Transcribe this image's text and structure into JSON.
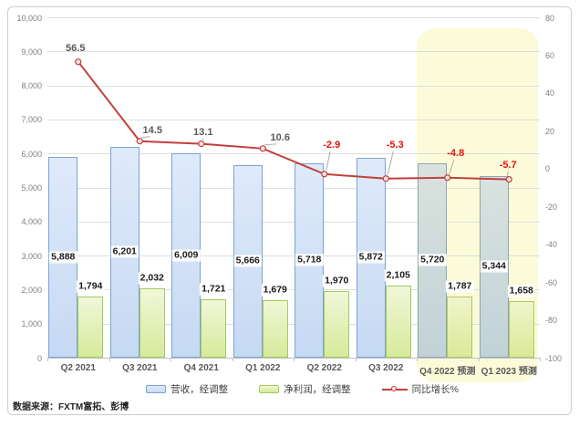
{
  "source_note": "数据来源：FXTM富拓、彭博",
  "legend": {
    "items": [
      {
        "id": "revenue",
        "label": "营收，经调整"
      },
      {
        "id": "profit",
        "label": "净利润，经调整"
      },
      {
        "id": "growth",
        "label": "同比增长%"
      }
    ]
  },
  "chart_data": {
    "type": "bar",
    "subtype": "combo bar + line, dual axis",
    "categories": [
      "Q2 2021",
      "Q3 2021",
      "Q4 2021",
      "Q1 2022",
      "Q2 2022",
      "Q3 2022",
      "Q4 2022 预测",
      "Q1 2023 预测"
    ],
    "forecast_from_index": 6,
    "series": [
      {
        "name": "营收，经调整",
        "type": "bar",
        "axis": "left",
        "values": [
          5888,
          6201,
          6009,
          5666,
          5718,
          5872,
          5720,
          5344
        ],
        "labels": [
          "5,888",
          "6,201",
          "6,009",
          "5,666",
          "5,718",
          "5,872",
          "5,720",
          "5,344"
        ]
      },
      {
        "name": "净利润，经调整",
        "type": "bar",
        "axis": "left",
        "values": [
          1794,
          2032,
          1721,
          1679,
          1970,
          2105,
          1787,
          1658
        ],
        "labels": [
          "1,794",
          "2,032",
          "1,721",
          "1,679",
          "1,970",
          "2,105",
          "1,787",
          "1,658"
        ]
      },
      {
        "name": "同比增长%",
        "type": "line",
        "axis": "right",
        "values": [
          56.5,
          14.5,
          13.1,
          10.6,
          -2.9,
          -5.3,
          -4.8,
          -5.7
        ],
        "labels": [
          "56.5",
          "14.5",
          "13.1",
          "10.6",
          "-2.9",
          "-5.3",
          "-4.8",
          "-5.7"
        ]
      }
    ],
    "left_axis": {
      "min": 0,
      "max": 10000,
      "step": 1000,
      "tick_labels": [
        "0",
        "1,000",
        "2,000",
        "3,000",
        "4,000",
        "5,000",
        "6,000",
        "7,000",
        "8,000",
        "9,000",
        "10,000"
      ]
    },
    "right_axis": {
      "min": -100,
      "max": 80,
      "step": 20,
      "tick_labels": [
        "-100",
        "-80",
        "-60",
        "-40",
        "-20",
        "0",
        "20",
        "40",
        "60",
        "80"
      ]
    },
    "gridlines": true,
    "legend_position": "bottom",
    "colors": {
      "revenue_fill_top": "#dfeafa",
      "revenue_fill": "#c6d9f3",
      "revenue_border": "#7ca2d4",
      "profit_fill_top": "#f0f7d8",
      "profit_fill": "#d6ea9b",
      "profit_border": "#a5c860",
      "forecast_revenue_fill_top": "#dae2de",
      "forecast_revenue_fill": "#c2d2d8",
      "forecast_revenue_border": "#8ba6b6",
      "forecast_profit_fill_top": "#eff5cb",
      "forecast_profit_fill": "#dbe998",
      "forecast_profit_border": "#aec763",
      "growth_line": "#c2403c",
      "marker_fill": "#f5e4e3",
      "positive_label": "#595959",
      "negative_label": "#e81309",
      "forecast_background": "#fbfbd9",
      "gridline": "#dedede",
      "axis_line": "#c0c0c0",
      "axis_tick_label": "#7f7f7f",
      "category_label": "#595959",
      "value_label": "#1a1a1a",
      "leader_line": "#ababab"
    }
  }
}
